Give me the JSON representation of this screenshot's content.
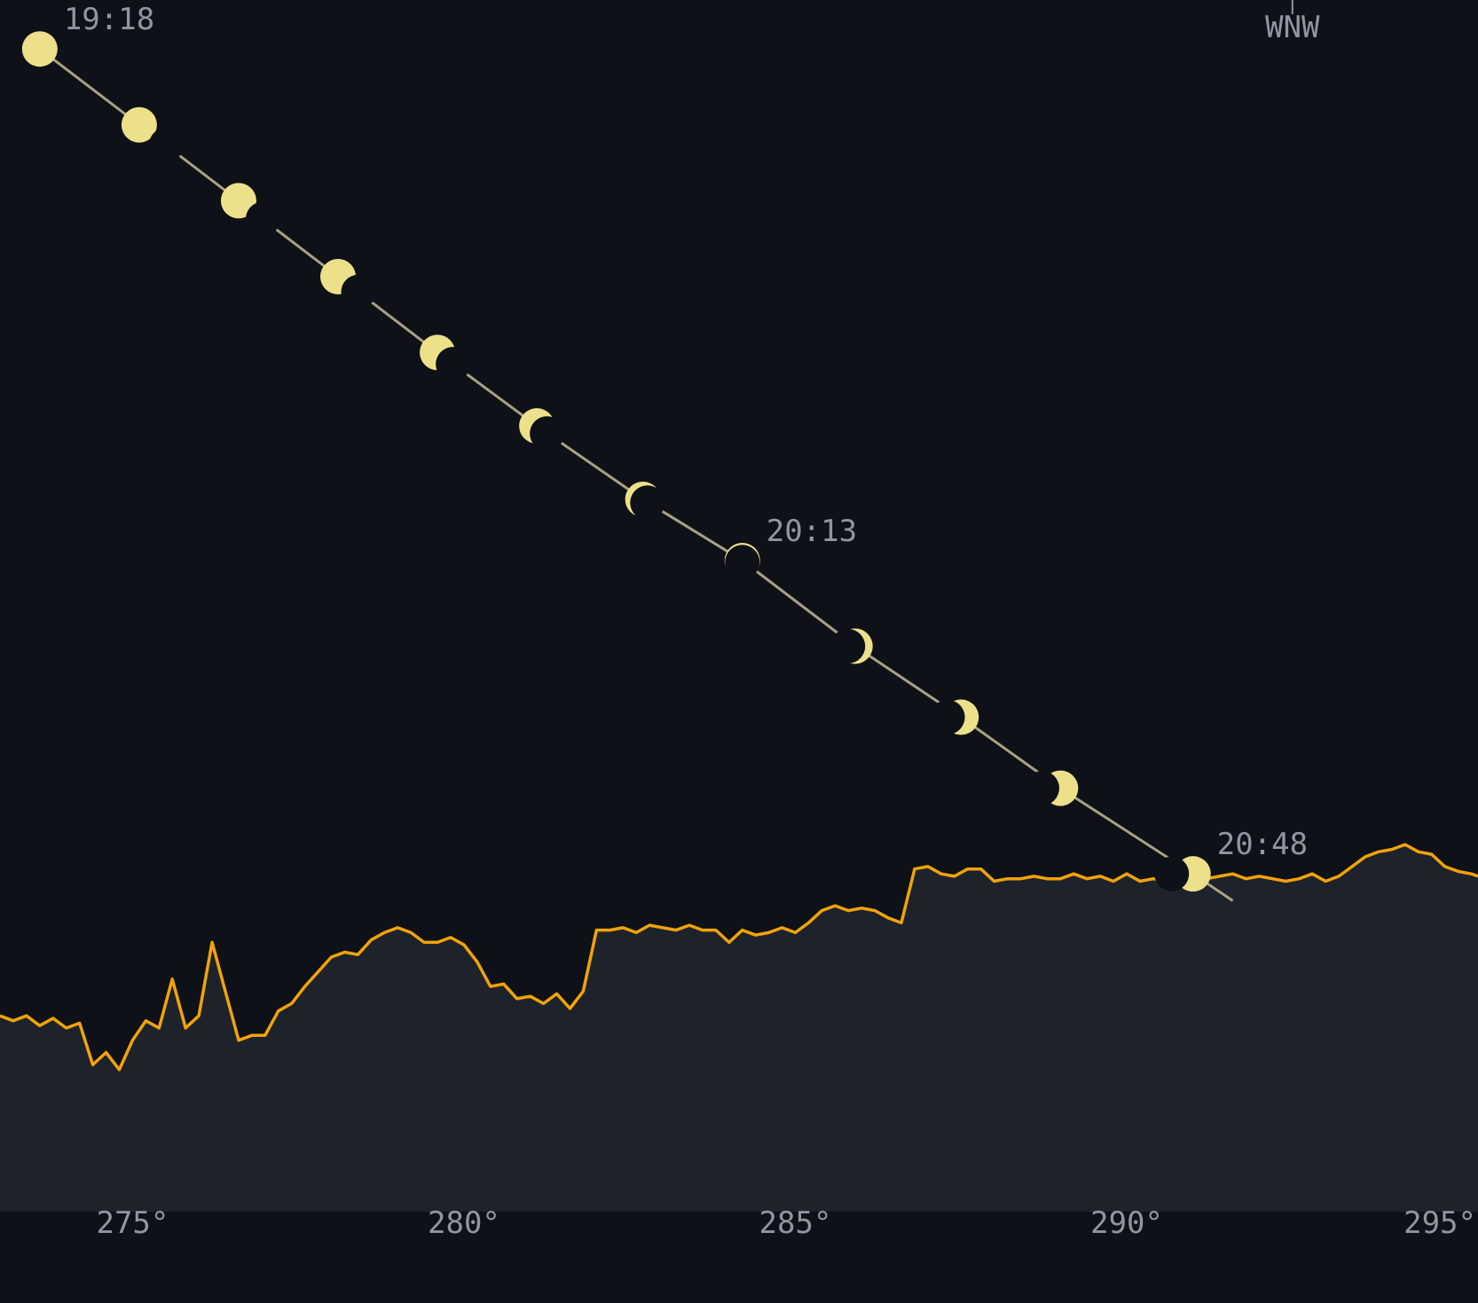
{
  "chart_data": {
    "type": "line",
    "title": "",
    "xlabel": "",
    "ylabel": "",
    "x_ticks": [
      {
        "value": 275,
        "label": "275°"
      },
      {
        "value": 280,
        "label": "280°"
      },
      {
        "value": 285,
        "label": "285°"
      },
      {
        "value": 290,
        "label": "290°"
      },
      {
        "value": 295,
        "label": "295°"
      }
    ],
    "compass_marker": {
      "label": "WNW",
      "azimuth": 292.5
    },
    "xlim": [
      273,
      295.3
    ],
    "ylim": [
      -1.2,
      3.75
    ],
    "moon_track": {
      "name": "",
      "points": [
        {
          "az": 273.6,
          "alt": 3.55,
          "illumination": 1.0,
          "time": "19:18"
        },
        {
          "az": 275.1,
          "alt": 3.24,
          "illumination": 0.95,
          "time": ""
        },
        {
          "az": 276.6,
          "alt": 2.93,
          "illumination": 0.86,
          "time": ""
        },
        {
          "az": 278.1,
          "alt": 2.62,
          "illumination": 0.72,
          "time": ""
        },
        {
          "az": 279.6,
          "alt": 2.31,
          "illumination": 0.55,
          "time": ""
        },
        {
          "az": 281.1,
          "alt": 2.01,
          "illumination": 0.36,
          "time": ""
        },
        {
          "az": 282.7,
          "alt": 1.71,
          "illumination": 0.16,
          "time": ""
        },
        {
          "az": 284.2,
          "alt": 1.46,
          "illumination": 0.02,
          "time": "20:13"
        },
        {
          "az": 285.9,
          "alt": 1.11,
          "illumination": 0.2,
          "time": ""
        },
        {
          "az": 287.5,
          "alt": 0.82,
          "illumination": 0.38,
          "time": ""
        },
        {
          "az": 289.0,
          "alt": 0.53,
          "illumination": 0.52,
          "time": ""
        },
        {
          "az": 291.0,
          "alt": 0.18,
          "illumination": 0.6,
          "time": "20:48"
        }
      ],
      "track_end": {
        "az": 291.6,
        "alt": 0.07
      }
    },
    "horizon_profile": {
      "name": "",
      "azimuth": [
        273.0,
        273.2,
        273.4,
        273.6,
        273.8,
        274.0,
        274.2,
        274.4,
        274.6,
        274.8,
        275.0,
        275.2,
        275.4,
        275.6,
        275.8,
        276.0,
        276.2,
        276.4,
        276.6,
        276.8,
        277.0,
        277.2,
        277.4,
        277.6,
        277.8,
        278.0,
        278.2,
        278.4,
        278.6,
        278.8,
        279.0,
        279.2,
        279.4,
        279.6,
        279.8,
        280.0,
        280.2,
        280.4,
        280.6,
        280.8,
        281.0,
        281.2,
        281.4,
        281.6,
        281.8,
        282.0,
        282.2,
        282.4,
        282.6,
        282.8,
        283.0,
        283.2,
        283.4,
        283.6,
        283.8,
        284.0,
        284.2,
        284.4,
        284.6,
        284.8,
        285.0,
        285.2,
        285.4,
        285.6,
        285.8,
        286.0,
        286.2,
        286.4,
        286.6,
        286.8,
        287.0,
        287.2,
        287.4,
        287.6,
        287.8,
        288.0,
        288.2,
        288.4,
        288.6,
        288.8,
        289.0,
        289.2,
        289.4,
        289.6,
        289.8,
        290.0,
        290.2,
        290.4,
        290.6,
        290.8,
        291.0,
        291.2,
        291.4,
        291.6,
        291.8,
        292.0,
        292.2,
        292.4,
        292.6,
        292.8,
        293.0,
        293.2,
        293.4,
        293.6,
        293.8,
        294.0,
        294.2,
        294.4,
        294.6,
        294.8,
        295.0,
        295.2,
        295.3
      ],
      "altitude": [
        -0.4,
        -0.42,
        -0.4,
        -0.44,
        -0.41,
        -0.45,
        -0.43,
        -0.6,
        -0.55,
        -0.62,
        -0.5,
        -0.42,
        -0.45,
        -0.25,
        -0.45,
        -0.4,
        -0.1,
        -0.3,
        -0.5,
        -0.48,
        -0.48,
        -0.38,
        -0.35,
        -0.28,
        -0.22,
        -0.16,
        -0.14,
        -0.15,
        -0.09,
        -0.06,
        -0.04,
        -0.06,
        -0.1,
        -0.1,
        -0.08,
        -0.11,
        -0.18,
        -0.28,
        -0.27,
        -0.33,
        -0.32,
        -0.35,
        -0.31,
        -0.37,
        -0.3,
        -0.05,
        -0.05,
        -0.04,
        -0.06,
        -0.03,
        -0.04,
        -0.05,
        -0.03,
        -0.05,
        -0.05,
        -0.1,
        -0.05,
        -0.07,
        -0.06,
        -0.04,
        -0.06,
        -0.02,
        0.03,
        0.05,
        0.03,
        0.04,
        0.03,
        0.0,
        -0.02,
        0.2,
        0.21,
        0.18,
        0.17,
        0.2,
        0.2,
        0.15,
        0.16,
        0.16,
        0.17,
        0.16,
        0.16,
        0.18,
        0.16,
        0.17,
        0.15,
        0.18,
        0.15,
        0.16,
        0.15,
        0.18,
        0.15,
        0.16,
        0.17,
        0.18,
        0.16,
        0.17,
        0.16,
        0.15,
        0.16,
        0.18,
        0.15,
        0.17,
        0.21,
        0.25,
        0.27,
        0.28,
        0.3,
        0.27,
        0.26,
        0.21,
        0.19,
        0.18,
        0.17
      ]
    },
    "grid": false,
    "legend": "none",
    "colors": {
      "background": "#0e1117",
      "terrain_fill": "#1e222b",
      "terrain_line": "#f0a30a",
      "track_line": "#a8a283",
      "moon_lit": "#ede08a",
      "moon_dark": "#0e1117",
      "label": "#8f96a3"
    }
  }
}
